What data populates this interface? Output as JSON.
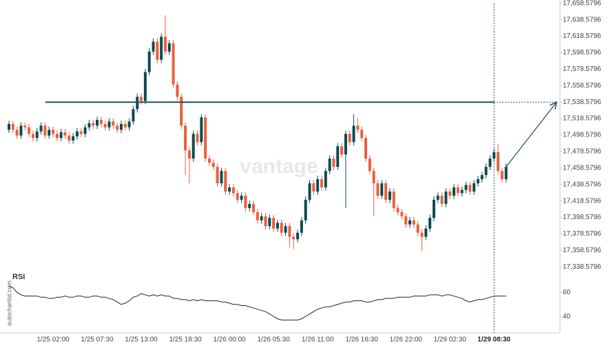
{
  "chart_data": {
    "type": "candlestick",
    "watermark": "vantage",
    "source": "autochartist.com",
    "up_color": "#0e4a52",
    "down_color": "#e8603c",
    "resistance": 17538.5796,
    "resistance_color": "#1d4f57",
    "highlight": "1/29 08:30",
    "categories": [
      null,
      null,
      null,
      null,
      null,
      null,
      null,
      null,
      null,
      null,
      null,
      "1/25 02:00",
      null,
      null,
      null,
      null,
      null,
      null,
      null,
      null,
      null,
      null,
      "1/25 07:30",
      null,
      null,
      null,
      null,
      null,
      null,
      null,
      null,
      null,
      null,
      "1/25 13:00",
      null,
      null,
      null,
      null,
      null,
      null,
      null,
      null,
      null,
      null,
      "1/25 18:30",
      null,
      null,
      null,
      null,
      null,
      null,
      null,
      null,
      null,
      null,
      "1/26 00:00",
      null,
      null,
      null,
      null,
      null,
      null,
      null,
      null,
      null,
      null,
      "1/26 05:30",
      null,
      null,
      null,
      null,
      null,
      null,
      null,
      null,
      null,
      null,
      "1/26 11:00",
      null,
      null,
      null,
      null,
      null,
      null,
      null,
      null,
      null,
      null,
      "1/26 16:30",
      null,
      null,
      null,
      null,
      null,
      null,
      null,
      null,
      null,
      null,
      "1/26 22:00",
      null,
      null,
      null,
      null,
      null,
      null,
      null,
      null,
      null,
      null,
      "1/29 02:30",
      null,
      null,
      null,
      null,
      null,
      null,
      null,
      null,
      null,
      null,
      "1/29 08:30",
      null,
      null,
      null
    ],
    "open": [
      17505,
      17512,
      17505,
      17498,
      17510,
      17508,
      17500,
      17495,
      17503,
      17510,
      17498,
      17505,
      17500,
      17495,
      17502,
      17498,
      17492,
      17497,
      17503,
      17500,
      17508,
      17513,
      17510,
      17517,
      17512,
      17508,
      17515,
      17510,
      17505,
      17512,
      17508,
      17515,
      17530,
      17545,
      17540,
      17575,
      17600,
      17612,
      17590,
      17618,
      17600,
      17610,
      17560,
      17545,
      17510,
      17480,
      17470,
      17500,
      17490,
      17520,
      17470,
      17465,
      17460,
      17440,
      17455,
      17430,
      17435,
      17428,
      17420,
      17425,
      17410,
      17415,
      17405,
      17395,
      17400,
      17388,
      17398,
      17385,
      17392,
      17380,
      17388,
      17375,
      17372,
      17380,
      17395,
      17420,
      17440,
      17430,
      17445,
      17435,
      17455,
      17470,
      17460,
      17485,
      17475,
      17500,
      17490,
      17510,
      17505,
      17495,
      17470,
      17455,
      17440,
      17425,
      17440,
      17420,
      17430,
      17410,
      17405,
      17400,
      17390,
      17395,
      17390,
      17380,
      17375,
      17385,
      17398,
      17420,
      17425,
      17415,
      17430,
      17425,
      17435,
      17428,
      17432,
      17438,
      17430,
      17440,
      17445,
      17450,
      17460,
      17470,
      17478,
      17455,
      17445
    ],
    "high": [
      17516,
      17516,
      17509,
      17514,
      17514,
      17512,
      17504,
      17507,
      17514,
      17514,
      17509,
      17509,
      17504,
      17506,
      17506,
      17502,
      17501,
      17507,
      17507,
      17512,
      17517,
      17517,
      17521,
      17521,
      17516,
      17519,
      17519,
      17514,
      17516,
      17516,
      17519,
      17534,
      17549,
      17549,
      17579,
      17604,
      17616,
      17616,
      17622,
      17644,
      17614,
      17614,
      17564,
      17549,
      17514,
      17484,
      17504,
      17504,
      17524,
      17524,
      17474,
      17469,
      17464,
      17459,
      17459,
      17439,
      17439,
      17432,
      17429,
      17429,
      17419,
      17419,
      17409,
      17404,
      17404,
      17402,
      17402,
      17396,
      17396,
      17392,
      17392,
      17379,
      17384,
      17399,
      17424,
      17444,
      17444,
      17449,
      17449,
      17459,
      17474,
      17474,
      17489,
      17489,
      17504,
      17504,
      17524,
      17520,
      17509,
      17499,
      17474,
      17459,
      17444,
      17444,
      17444,
      17434,
      17434,
      17414,
      17409,
      17404,
      17399,
      17399,
      17394,
      17384,
      17389,
      17402,
      17424,
      17429,
      17429,
      17434,
      17434,
      17439,
      17439,
      17436,
      17442,
      17442,
      17444,
      17449,
      17454,
      17464,
      17474,
      17482,
      17488,
      17459,
      17464
    ],
    "low": [
      17501,
      17501,
      17494,
      17494,
      17504,
      17496,
      17491,
      17491,
      17499,
      17494,
      17494,
      17496,
      17491,
      17491,
      17494,
      17488,
      17488,
      17493,
      17496,
      17496,
      17504,
      17506,
      17506,
      17508,
      17504,
      17504,
      17506,
      17501,
      17501,
      17504,
      17504,
      17511,
      17526,
      17536,
      17536,
      17571,
      17596,
      17586,
      17586,
      17596,
      17596,
      17556,
      17541,
      17506,
      17450,
      17440,
      17466,
      17486,
      17486,
      17466,
      17461,
      17456,
      17436,
      17436,
      17426,
      17426,
      17424,
      17416,
      17416,
      17406,
      17406,
      17401,
      17391,
      17391,
      17384,
      17384,
      17381,
      17381,
      17376,
      17376,
      17362,
      17360,
      17368,
      17376,
      17391,
      17416,
      17426,
      17426,
      17431,
      17431,
      17451,
      17456,
      17456,
      17471,
      17410,
      17486,
      17486,
      17501,
      17491,
      17466,
      17451,
      17400,
      17421,
      17421,
      17416,
      17416,
      17406,
      17401,
      17396,
      17386,
      17386,
      17386,
      17376,
      17358,
      17371,
      17381,
      17394,
      17416,
      17411,
      17411,
      17421,
      17421,
      17424,
      17424,
      17428,
      17426,
      17426,
      17436,
      17441,
      17446,
      17456,
      17466,
      17451,
      17441,
      17441
    ],
    "close": [
      17512,
      17505,
      17498,
      17510,
      17508,
      17500,
      17495,
      17503,
      17510,
      17498,
      17505,
      17500,
      17495,
      17502,
      17498,
      17492,
      17497,
      17503,
      17500,
      17508,
      17513,
      17510,
      17517,
      17512,
      17508,
      17515,
      17510,
      17505,
      17512,
      17508,
      17515,
      17530,
      17545,
      17540,
      17575,
      17600,
      17612,
      17590,
      17618,
      17600,
      17610,
      17560,
      17545,
      17510,
      17480,
      17470,
      17500,
      17490,
      17520,
      17470,
      17465,
      17460,
      17440,
      17455,
      17430,
      17435,
      17428,
      17420,
      17425,
      17410,
      17415,
      17405,
      17395,
      17400,
      17388,
      17398,
      17385,
      17392,
      17380,
      17388,
      17375,
      17372,
      17380,
      17395,
      17420,
      17440,
      17430,
      17445,
      17435,
      17455,
      17470,
      17460,
      17485,
      17475,
      17500,
      17490,
      17510,
      17505,
      17495,
      17470,
      17455,
      17440,
      17425,
      17440,
      17420,
      17430,
      17410,
      17405,
      17400,
      17390,
      17395,
      17390,
      17380,
      17375,
      17385,
      17398,
      17420,
      17425,
      17415,
      17430,
      17425,
      17435,
      17428,
      17432,
      17438,
      17430,
      17440,
      17445,
      17450,
      17460,
      17470,
      17478,
      17455,
      17445,
      17460
    ],
    "ylim": [
      17334.5796,
      17662.5796
    ],
    "yticks": [
      {
        "value": 17338.5796,
        "label": "17,338.5796"
      },
      {
        "value": 17358.5796,
        "label": "17,358.5796"
      },
      {
        "value": 17378.5796,
        "label": "17,378.5796"
      },
      {
        "value": 17398.5796,
        "label": "17,398.5796"
      },
      {
        "value": 17418.5796,
        "label": "17,418.5796"
      },
      {
        "value": 17438.5796,
        "label": "17,438.5796"
      },
      {
        "value": 17458.5796,
        "label": "17,458.5796"
      },
      {
        "value": 17478.5796,
        "label": "17,478.5796"
      },
      {
        "value": 17498.5796,
        "label": "17,498.5796"
      },
      {
        "value": 17518.5796,
        "label": "17,518.5796"
      },
      {
        "value": 17538.5796,
        "label": "17,538.5796"
      },
      {
        "value": 17558.5796,
        "label": "17,558.5796"
      },
      {
        "value": 17578.5796,
        "label": "17,578.5796"
      },
      {
        "value": 17598.5796,
        "label": "17,598.5796"
      },
      {
        "value": 17618.5796,
        "label": "17,618.5796"
      },
      {
        "value": 17638.5796,
        "label": "17,638.5796"
      },
      {
        "value": 17658.5796,
        "label": "17,658.5796"
      }
    ],
    "rsi": {
      "label": "RSI",
      "ylim": [
        28,
        74
      ],
      "yticks": [
        40,
        60
      ],
      "values": [
        65,
        64,
        60,
        58,
        57,
        57,
        57,
        57,
        56,
        56,
        55,
        55,
        56,
        56,
        57,
        56,
        56,
        57,
        57,
        56,
        56,
        57,
        57,
        56,
        56,
        55,
        54,
        52,
        50,
        51,
        53,
        56,
        57,
        59,
        58,
        57,
        58,
        57,
        58,
        57,
        57,
        55,
        55,
        54,
        54,
        53,
        54,
        53,
        54,
        53,
        53,
        53,
        53,
        52,
        52,
        51,
        50,
        50,
        49,
        49,
        48,
        47,
        46,
        45,
        44,
        42,
        40,
        38,
        37,
        37,
        37,
        37,
        37,
        38,
        40,
        42,
        44,
        46,
        47,
        48,
        48,
        49,
        50,
        51,
        52,
        52,
        53,
        53,
        53,
        52,
        52,
        53,
        54,
        54,
        55,
        55,
        55,
        56,
        56,
        56,
        56,
        57,
        57,
        57,
        57,
        58,
        58,
        58,
        57,
        58,
        58,
        57,
        56,
        55,
        53,
        52,
        53,
        54,
        54,
        55,
        56,
        57,
        57,
        57,
        57
      ]
    }
  }
}
